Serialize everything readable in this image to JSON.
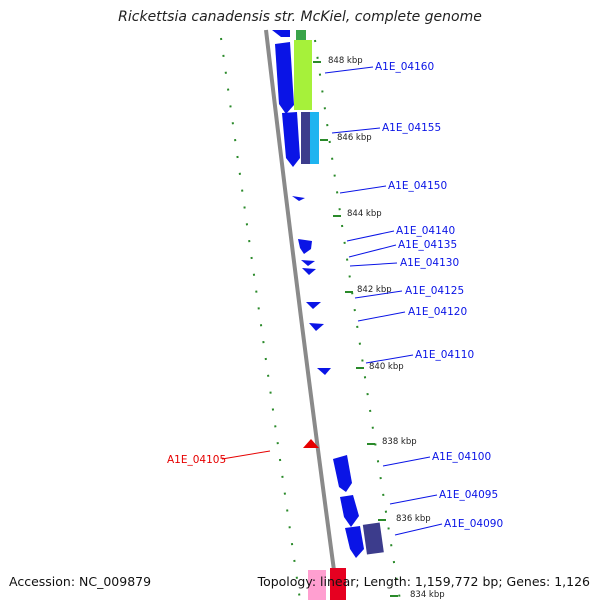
{
  "title": "Rickettsia canadensis str. McKiel, complete genome",
  "accession": "Accession: NC_009879",
  "summary": "Topology: linear; Length: 1,159,772 bp; Genes: 1,126",
  "colors": {
    "forward_gene": "#0a14e6",
    "reverse_gene": "#e60000",
    "backbone": "#8a8a8a",
    "tick": "#2a8a2a"
  },
  "ticks": [
    "848 kbp",
    "846 kbp",
    "844 kbp",
    "842 kbp",
    "840 kbp",
    "838 kbp",
    "836 kbp",
    "834 kbp"
  ],
  "genes": [
    {
      "name": "A1E_04160",
      "strand": "forward"
    },
    {
      "name": "A1E_04155",
      "strand": "forward"
    },
    {
      "name": "A1E_04150",
      "strand": "forward"
    },
    {
      "name": "A1E_04140",
      "strand": "forward"
    },
    {
      "name": "A1E_04135",
      "strand": "forward"
    },
    {
      "name": "A1E_04130",
      "strand": "forward"
    },
    {
      "name": "A1E_04125",
      "strand": "forward"
    },
    {
      "name": "A1E_04120",
      "strand": "forward"
    },
    {
      "name": "A1E_04110",
      "strand": "forward"
    },
    {
      "name": "A1E_04105",
      "strand": "reverse"
    },
    {
      "name": "A1E_04100",
      "strand": "forward"
    },
    {
      "name": "A1E_04095",
      "strand": "forward"
    },
    {
      "name": "A1E_04090",
      "strand": "forward"
    }
  ]
}
